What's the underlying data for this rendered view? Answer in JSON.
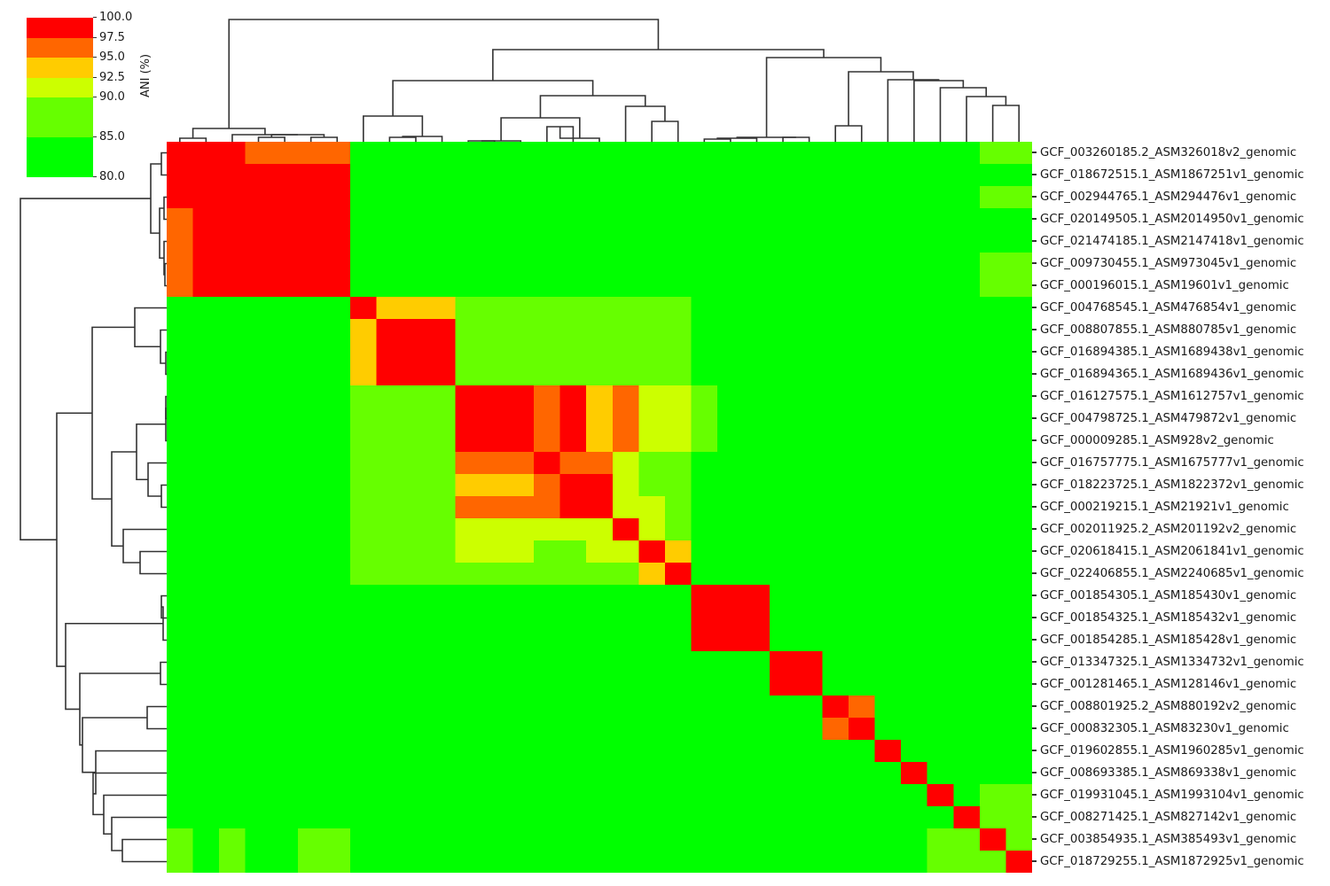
{
  "chart_data": {
    "type": "heatmap",
    "title": "",
    "subtitle": "",
    "xlabel": "",
    "ylabel": "",
    "description": "Clustered ANI (Average Nucleotide Identity) heatmap with row and column dendrograms",
    "colorbar": {
      "label": "ANI (%)",
      "ticks": [
        "100.0",
        "97.5",
        "95.0",
        "92.5",
        "90.0",
        "85.0",
        "80.0"
      ],
      "range": [
        80,
        100
      ],
      "bins": [
        {
          "min": 97.5,
          "max": 100.0,
          "color": "#ff0000"
        },
        {
          "min": 95.0,
          "max": 97.5,
          "color": "#ff6600"
        },
        {
          "min": 92.5,
          "max": 95.0,
          "color": "#ffcc00"
        },
        {
          "min": 90.0,
          "max": 92.5,
          "color": "#ccff00"
        },
        {
          "min": 85.0,
          "max": 90.0,
          "color": "#66ff00"
        },
        {
          "min": 80.0,
          "max": 85.0,
          "color": "#00ff00"
        }
      ]
    },
    "level_colors": {
      "R": "#ff0000",
      "O": "#ff6600",
      "Y": "#ffcc00",
      "G": "#ccff00",
      "L": "#66ff00",
      "B": "#00ff00"
    },
    "level_ranges": {
      "R": "97.5-100",
      "O": "95-97.5",
      "Y": "92.5-95",
      "G": "90-92.5",
      "L": "85-90",
      "B": "80-85"
    },
    "row_labels": [
      "GCF_003260185.2_ASM326018v2_genomic",
      "GCF_018672515.1_ASM1867251v1_genomic",
      "GCF_002944765.1_ASM294476v1_genomic",
      "GCF_020149505.1_ASM2014950v1_genomic",
      "GCF_021474185.1_ASM2147418v1_genomic",
      "GCF_009730455.1_ASM973045v1_genomic",
      "GCF_000196015.1_ASM19601v1_genomic",
      "GCF_004768545.1_ASM476854v1_genomic",
      "GCF_008807855.1_ASM880785v1_genomic",
      "GCF_016894385.1_ASM1689438v1_genomic",
      "GCF_016894365.1_ASM1689436v1_genomic",
      "GCF_016127575.1_ASM1612757v1_genomic",
      "GCF_004798725.1_ASM479872v1_genomic",
      "GCF_000009285.1_ASM928v2_genomic",
      "GCF_016757775.1_ASM1675777v1_genomic",
      "GCF_018223725.1_ASM1822372v1_genomic",
      "GCF_000219215.1_ASM21921v1_genomic",
      "GCF_002011925.2_ASM201192v2_genomic",
      "GCF_020618415.1_ASM2061841v1_genomic",
      "GCF_022406855.1_ASM2240685v1_genomic",
      "GCF_001854305.1_ASM185430v1_genomic",
      "GCF_001854325.1_ASM185432v1_genomic",
      "GCF_001854285.1_ASM185428v1_genomic",
      "GCF_013347325.1_ASM1334732v1_genomic",
      "GCF_001281465.1_ASM128146v1_genomic",
      "GCF_008801925.2_ASM880192v2_genomic",
      "GCF_000832305.1_ASM83230v1_genomic",
      "GCF_019602855.1_ASM1960285v1_genomic",
      "GCF_008693385.1_ASM869338v1_genomic",
      "GCF_019931045.1_ASM1993104v1_genomic",
      "GCF_008271425.1_ASM827142v1_genomic",
      "GCF_003854935.1_ASM385493v1_genomic",
      "GCF_018729255.1_ASM1872925v1_genomic"
    ],
    "column_labels_visible": false,
    "matrix_levels": [
      "RRROOOOBBBBBBBBBBBBBBBBBBBBBBBBLL",
      "RRRRRRRBBBBBBBBBBBBBBBBBBBBBBBBBB",
      "RRRRRRRBBBBBBBBBBBBBBBBBBBBBBBBLL",
      "ORRRRRRBBBBBBBBBBBBBBBBBBBBBBBBBB",
      "ORRRRRRBBBBBBBBBBBBBBBBBBBBBBBBBB",
      "ORRRRRRBBBBBBBBBBBBBBBBBBBBBBBBLL",
      "ORRRRRRBBBBBBBBBBBBBBBBBBBBBBBBLL",
      "BBBBBBBRYYYLLLLLLLLLBBBBBBBBBBBBB",
      "BBBBBBBYRRRLLLLLLLLLBBBBBBBBBBBBB",
      "BBBBBBBYRRRLLLLLLLLLBBBBBBBBBBBBB",
      "BBBBBBBYRRRLLLLLLLLLBBBBBBBBBBBBB",
      "BBBBBBBLLLLRRRORYOGGLBBBBBBBBBBBB",
      "BBBBBBBLLLLRRRORYOGGLBBBBBBBBBBBB",
      "BBBBBBBLLLLRRRORYOGGLBBBBBBBBBBBB",
      "BBBBBBBLLLLOOOROOGLLBBBBBBBBBBBBB",
      "BBBBBBBLLLLYYYORRGLLBBBBBBBBBBBBB",
      "BBBBBBBLLLLOOOORRGGLBBBBBBBBBBBBB",
      "BBBBBBBLLLLGGGGGGRGLBBBBBBBBBBBBB",
      "BBBBBBBLLLLGGGLLGGRYBBBBBBBBBBBBB",
      "BBBBBBBLLLLLLLLLLLYRBBBBBBBBBBBBB",
      "BBBBBBBBBBBBBBBBBBBBRRRBBBBBBBBBB",
      "BBBBBBBBBBBBBBBBBBBBRRRBBBBBBBBBB",
      "BBBBBBBBBBBBBBBBBBBBRRRBBBBBBBBBB",
      "BBBBBBBBBBBBBBBBBBBBBBBRRBBBBBBBB",
      "BBBBBBBBBBBBBBBBBBBBBBBRRBBBBBBBB",
      "BBBBBBBBBBBBBBBBBBBBBBBBBROBBBBBB",
      "BBBBBBBBBBBBBBBBBBBBBBBBBORBBBBBB",
      "BBBBBBBBBBBBBBBBBBBBBBBBBBBRBBBBB",
      "BBBBBBBBBBBBBBBBBBBBBBBBBBBBRBBBB",
      "BBBBBBBBBBBBBBBBBBBBBBBBBBBBBRBLL",
      "BBBBBBBBBBBBBBBBBBBBBBBBBBBBBBRLL",
      "LBLBBLLBBBBBBBBBBBBBBBBBBBBBBLLRL",
      "LBLBBLLBBBBBBBBBBBBBBBBBBBBBBLLLR"
    ],
    "grid": false,
    "legend_position": "top-left colorbar",
    "dendrograms": [
      "top (columns)",
      "left (rows)"
    ]
  }
}
